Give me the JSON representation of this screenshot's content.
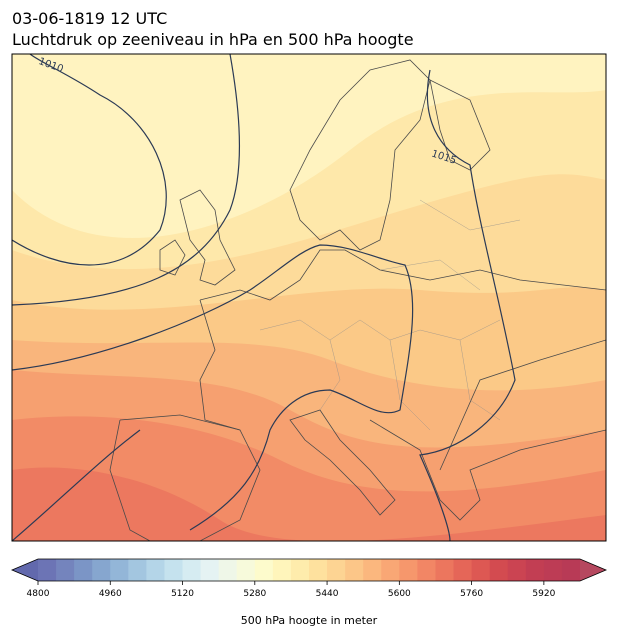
{
  "header": {
    "title": "03-06-1819 12 UTC",
    "subtitle": "Luchtdruk op zeeniveau in hPa en 500 hPa hoogte"
  },
  "isobar_labels": [
    "1010",
    "1015"
  ],
  "colorbar": {
    "label": "500 hPa hoogte in meter",
    "lim": [
      4800,
      6000
    ],
    "ticks": [
      4800,
      4960,
      5120,
      5280,
      5440,
      5600,
      5760,
      5920
    ],
    "colors": [
      "#6c74b5",
      "#7484bd",
      "#7b95c6",
      "#86a6cf",
      "#93b6d8",
      "#a3c6e0",
      "#b4d5e8",
      "#c5e2ee",
      "#d6ecf2",
      "#e5f3f3",
      "#eff7e8",
      "#f7fadb",
      "#fdfbcc",
      "#fff5bb",
      "#feecac",
      "#fee19e",
      "#fdd493",
      "#fcc688",
      "#fbb77e",
      "#f9a775",
      "#f6976c",
      "#f28665",
      "#ec765e",
      "#e56658",
      "#dd5853",
      "#d34b50",
      "#cb4452",
      "#c23e53",
      "#bd3c55",
      "#b83a56"
    ],
    "under_color": "#6269ad",
    "over_color": "#b6485f"
  }
}
